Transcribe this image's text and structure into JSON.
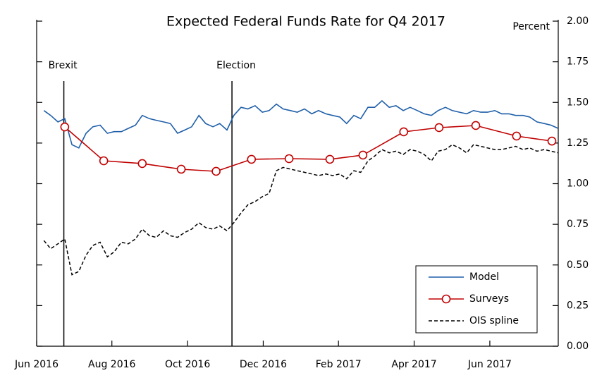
{
  "chart_data": {
    "type": "line",
    "title": "Expected Federal Funds Rate for Q4 2017",
    "y_axis_label": "Percent",
    "xlim": [
      2016.417,
      2017.568
    ],
    "ylim": [
      0,
      2
    ],
    "xticks": [
      {
        "value": 2016.417,
        "label": "Jun 2016"
      },
      {
        "value": 2016.583,
        "label": "Aug 2016"
      },
      {
        "value": 2016.75,
        "label": "Oct 2016"
      },
      {
        "value": 2016.917,
        "label": "Dec 2016"
      },
      {
        "value": 2017.083,
        "label": "Feb 2017"
      },
      {
        "value": 2017.25,
        "label": "Apr 2017"
      },
      {
        "value": 2017.417,
        "label": "Jun 2017"
      }
    ],
    "yticks": [
      {
        "value": 0,
        "label": "0.00"
      },
      {
        "value": 0.25,
        "label": "0.25"
      },
      {
        "value": 0.5,
        "label": "0.50"
      },
      {
        "value": 0.75,
        "label": "0.75"
      },
      {
        "value": 1,
        "label": "1.00"
      },
      {
        "value": 1.25,
        "label": "1.25"
      },
      {
        "value": 1.5,
        "label": "1.50"
      },
      {
        "value": 1.75,
        "label": "1.75"
      },
      {
        "value": 2,
        "label": "2.00"
      }
    ],
    "events": [
      {
        "label": "Brexit",
        "x": 2016.477
      },
      {
        "label": "Election",
        "x": 2016.848
      }
    ],
    "legend_position": "lower right",
    "series": [
      {
        "name": "Model",
        "color": "#1f5fa8",
        "style": "solid",
        "markers": false,
        "x": [
          2016.433,
          2016.448,
          2016.464,
          2016.479,
          2016.495,
          2016.51,
          2016.526,
          2016.541,
          2016.557,
          2016.573,
          2016.588,
          2016.604,
          2016.619,
          2016.635,
          2016.65,
          2016.666,
          2016.681,
          2016.697,
          2016.712,
          2016.728,
          2016.744,
          2016.759,
          2016.775,
          2016.79,
          2016.806,
          2016.821,
          2016.837,
          2016.852,
          2016.868,
          2016.883,
          2016.899,
          2016.915,
          2016.93,
          2016.946,
          2016.961,
          2016.977,
          2016.992,
          2017.008,
          2017.024,
          2017.039,
          2017.055,
          2017.07,
          2017.086,
          2017.101,
          2017.117,
          2017.132,
          2017.148,
          2017.163,
          2017.179,
          2017.195,
          2017.21,
          2017.226,
          2017.241,
          2017.257,
          2017.272,
          2017.288,
          2017.303,
          2017.319,
          2017.334,
          2017.35,
          2017.366,
          2017.381,
          2017.397,
          2017.412,
          2017.428,
          2017.443,
          2017.459,
          2017.474,
          2017.49,
          2017.505,
          2017.521,
          2017.537,
          2017.552,
          2017.568
        ],
        "values": [
          1.45,
          1.42,
          1.38,
          1.4,
          1.24,
          1.22,
          1.31,
          1.35,
          1.36,
          1.31,
          1.32,
          1.32,
          1.34,
          1.36,
          1.42,
          1.4,
          1.39,
          1.38,
          1.37,
          1.31,
          1.33,
          1.35,
          1.42,
          1.37,
          1.35,
          1.37,
          1.33,
          1.42,
          1.47,
          1.46,
          1.48,
          1.44,
          1.45,
          1.49,
          1.46,
          1.45,
          1.44,
          1.46,
          1.43,
          1.45,
          1.43,
          1.42,
          1.41,
          1.37,
          1.42,
          1.4,
          1.47,
          1.47,
          1.51,
          1.47,
          1.48,
          1.45,
          1.47,
          1.45,
          1.43,
          1.42,
          1.45,
          1.47,
          1.45,
          1.44,
          1.43,
          1.45,
          1.44,
          1.44,
          1.45,
          1.43,
          1.43,
          1.42,
          1.42,
          1.41,
          1.38,
          1.37,
          1.36,
          1.34
        ]
      },
      {
        "name": "Surveys",
        "color": "#c00000",
        "style": "solid",
        "markers": true,
        "x": [
          2016.479,
          2016.565,
          2016.65,
          2016.736,
          2016.813,
          2016.891,
          2016.974,
          2017.064,
          2017.137,
          2017.227,
          2017.305,
          2017.386,
          2017.476,
          2017.554
        ],
        "values": [
          1.349,
          1.141,
          1.124,
          1.089,
          1.076,
          1.15,
          1.154,
          1.15,
          1.176,
          1.319,
          1.345,
          1.358,
          1.293,
          1.262
        ]
      },
      {
        "name": "OIS spline",
        "color": "#000000",
        "style": "dashed",
        "markers": false,
        "x": [
          2016.433,
          2016.448,
          2016.464,
          2016.479,
          2016.495,
          2016.51,
          2016.526,
          2016.541,
          2016.557,
          2016.573,
          2016.588,
          2016.604,
          2016.619,
          2016.635,
          2016.65,
          2016.666,
          2016.681,
          2016.697,
          2016.712,
          2016.728,
          2016.744,
          2016.759,
          2016.775,
          2016.79,
          2016.806,
          2016.821,
          2016.837,
          2016.852,
          2016.868,
          2016.883,
          2016.899,
          2016.915,
          2016.93,
          2016.946,
          2016.961,
          2016.977,
          2016.992,
          2017.008,
          2017.024,
          2017.039,
          2017.055,
          2017.07,
          2017.086,
          2017.101,
          2017.117,
          2017.132,
          2017.148,
          2017.163,
          2017.179,
          2017.195,
          2017.21,
          2017.226,
          2017.241,
          2017.257,
          2017.272,
          2017.288,
          2017.303,
          2017.319,
          2017.334,
          2017.35,
          2017.366,
          2017.381,
          2017.397,
          2017.412,
          2017.428,
          2017.443,
          2017.459,
          2017.474,
          2017.49,
          2017.505,
          2017.521,
          2017.537,
          2017.552,
          2017.568
        ],
        "values": [
          0.65,
          0.6,
          0.63,
          0.66,
          0.44,
          0.46,
          0.56,
          0.62,
          0.64,
          0.55,
          0.58,
          0.64,
          0.63,
          0.66,
          0.72,
          0.68,
          0.67,
          0.71,
          0.68,
          0.67,
          0.7,
          0.72,
          0.76,
          0.73,
          0.72,
          0.74,
          0.71,
          0.76,
          0.82,
          0.87,
          0.89,
          0.92,
          0.94,
          1.08,
          1.1,
          1.09,
          1.08,
          1.07,
          1.06,
          1.05,
          1.06,
          1.05,
          1.06,
          1.03,
          1.08,
          1.07,
          1.14,
          1.17,
          1.21,
          1.19,
          1.2,
          1.18,
          1.21,
          1.2,
          1.18,
          1.14,
          1.2,
          1.21,
          1.24,
          1.22,
          1.19,
          1.24,
          1.23,
          1.22,
          1.21,
          1.21,
          1.22,
          1.23,
          1.21,
          1.22,
          1.2,
          1.21,
          1.2,
          1.19
        ]
      }
    ]
  }
}
